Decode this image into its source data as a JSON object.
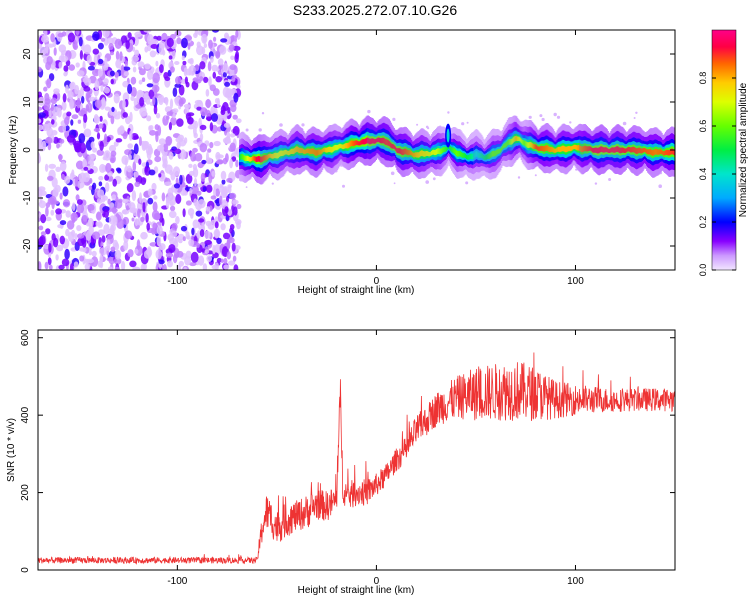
{
  "figure": {
    "title": "S233.2025.272.07.10.G26"
  },
  "chart_data": [
    {
      "type": "heatmap",
      "title": "S233.2025.272.07.10.G26",
      "xlabel": "Height of straight line (km)",
      "ylabel": "Frequency (Hz)",
      "xlim": [
        -170,
        150
      ],
      "ylim": [
        -25,
        25
      ],
      "xticks": [
        -100,
        0,
        100
      ],
      "xtick_labels": [
        "-100",
        "0",
        "100"
      ],
      "yticks": [
        -20,
        -10,
        0,
        10,
        20
      ],
      "ytick_labels": [
        "-20",
        "-10",
        "0",
        "10",
        "20"
      ],
      "colorbar": {
        "label": "Normalized spectral amplitude",
        "range": [
          0,
          1
        ],
        "ticks": [
          0,
          0.2,
          0.4,
          0.6,
          0.8
        ],
        "tick_labels": [
          "0.0",
          "0.2",
          "0.4",
          "0.6",
          "0.8"
        ]
      },
      "noise_region_x": [
        -170,
        -69
      ],
      "ridge": {
        "x": [
          -69,
          -60,
          -50,
          -40,
          -30,
          -20,
          -10,
          -5,
          0,
          5,
          10,
          20,
          30,
          36,
          40,
          45,
          50,
          55,
          58,
          62,
          66,
          70,
          74,
          80,
          90,
          100,
          110,
          120,
          130,
          140,
          150
        ],
        "freq": [
          -1.5,
          -2,
          -1,
          0,
          -0.5,
          0.5,
          1.5,
          1.8,
          2,
          1.8,
          0,
          -1,
          -0.5,
          0.5,
          -0.5,
          -1.5,
          -1,
          -1.5,
          -1,
          0,
          1.5,
          2.5,
          1.5,
          0.5,
          0,
          0.5,
          0,
          0,
          0,
          -0.5,
          -0.5
        ],
        "amp": [
          0.5,
          0.95,
          0.7,
          0.8,
          0.85,
          0.7,
          0.9,
          0.95,
          0.95,
          0.9,
          0.95,
          0.8,
          0.7,
          0.5,
          0.6,
          0.5,
          0.4,
          0.5,
          0.6,
          0.6,
          0.6,
          0.8,
          0.6,
          0.9,
          0.8,
          0.8,
          0.95,
          0.95,
          0.9,
          0.85,
          0.9
        ]
      }
    },
    {
      "type": "line",
      "xlabel": "Height of straight line (km)",
      "ylabel": "SNR (10 * v/v)",
      "xlim": [
        -170,
        150
      ],
      "ylim": [
        0,
        620
      ],
      "xticks": [
        -100,
        0,
        100
      ],
      "xtick_labels": [
        "-100",
        "0",
        "100"
      ],
      "yticks": [
        0,
        200,
        400,
        600
      ],
      "ytick_labels": [
        "0",
        "200",
        "400",
        "600"
      ],
      "series": [
        {
          "name": "SNR",
          "color": "#ee3333",
          "x": [
            -170,
            -60,
            -57,
            -55,
            -50,
            -45,
            -40,
            -35,
            -30,
            -25,
            -20,
            -18,
            -17,
            -15,
            -10,
            -5,
            0,
            5,
            10,
            15,
            20,
            25,
            30,
            35,
            40,
            50,
            60,
            70,
            80,
            90,
            100,
            110,
            120,
            130,
            140,
            150
          ],
          "y": [
            25,
            25,
            120,
            150,
            110,
            130,
            140,
            150,
            170,
            165,
            180,
            460,
            230,
            190,
            200,
            200,
            220,
            245,
            285,
            310,
            360,
            385,
            415,
            430,
            445,
            455,
            460,
            465,
            455,
            440,
            440,
            440,
            438,
            440,
            440,
            440
          ],
          "noise": [
            8,
            8,
            45,
            50,
            45,
            45,
            40,
            45,
            40,
            40,
            40,
            60,
            50,
            40,
            35,
            35,
            30,
            30,
            30,
            35,
            40,
            40,
            45,
            50,
            55,
            70,
            75,
            80,
            70,
            50,
            40,
            35,
            30,
            30,
            30,
            30
          ]
        }
      ]
    }
  ]
}
